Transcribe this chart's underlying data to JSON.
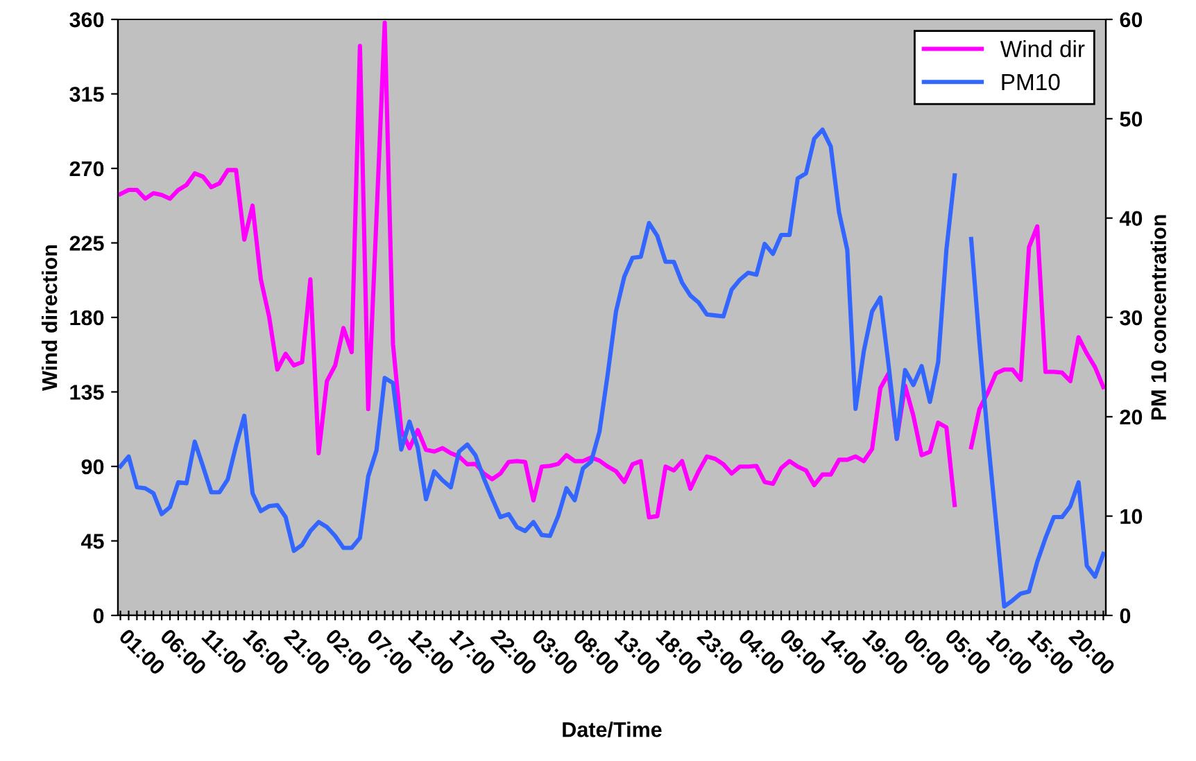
{
  "chart_data": {
    "type": "line",
    "xlabel": "Date/Time",
    "ylabel": "Wind direction",
    "y2label": "PM 10 concentration",
    "categories": [
      null,
      "01:00",
      null,
      null,
      null,
      null,
      "06:00",
      null,
      null,
      null,
      null,
      "11:00",
      null,
      null,
      null,
      null,
      "16:00",
      null,
      null,
      null,
      null,
      "21:00",
      null,
      null,
      null,
      null,
      "02:00",
      null,
      null,
      null,
      null,
      "07:00",
      null,
      null,
      null,
      null,
      "12:00",
      null,
      null,
      null,
      null,
      "17:00",
      null,
      null,
      null,
      null,
      "22:00",
      null,
      null,
      null,
      null,
      "03:00",
      null,
      null,
      null,
      null,
      "08:00",
      null,
      null,
      null,
      null,
      "13:00",
      null,
      null,
      null,
      null,
      "18:00",
      null,
      null,
      null,
      null,
      "23:00",
      null,
      null,
      null,
      null,
      "04:00",
      null,
      null,
      null,
      null,
      "09:00",
      null,
      null,
      null,
      null,
      "14:00",
      null,
      null,
      null,
      null,
      "19:00",
      null,
      null,
      null,
      null,
      "00:00",
      null,
      null,
      null,
      null,
      "05:00",
      null,
      null,
      null,
      null,
      "10:00",
      null,
      null,
      null,
      null,
      "15:00",
      null,
      null,
      null,
      null,
      "20:00",
      null,
      null,
      null
    ],
    "series": [
      {
        "name": "Wind dir",
        "color": "#ff00ff",
        "values": [
          254.5,
          257,
          257,
          251.7,
          255,
          254,
          251.7,
          257,
          260,
          267,
          265,
          258.7,
          261,
          269,
          269,
          227,
          247.5,
          203,
          180.6,
          148.5,
          158,
          151,
          153,
          203,
          98,
          141.5,
          151,
          173.6,
          159,
          344,
          124.7,
          240,
          358,
          164,
          112,
          101,
          112,
          100,
          99,
          101,
          98,
          96,
          91.3,
          91.5,
          85.7,
          82.3,
          85.7,
          92.7,
          93.2,
          92.7,
          69.5,
          89.9,
          90.3,
          91.5,
          96.8,
          93.2,
          93.2,
          95.4,
          93.5,
          89.9,
          87.1,
          80.6,
          91.3,
          93.2,
          59.2,
          60,
          89.9,
          87.6,
          93.2,
          76.5,
          87.1,
          96,
          94.6,
          91.3,
          85.7,
          89.9,
          89.9,
          90.3,
          80.6,
          79.5,
          89,
          93.2,
          89.9,
          87.6,
          78.7,
          85.1,
          85.1,
          94,
          94,
          96,
          93.2,
          100.5,
          137.3,
          146.2,
          106.6,
          138.7,
          120.6,
          96.8,
          98.8,
          116.4,
          113.6,
          66.7,
          null,
          101.6,
          124.7,
          134.5,
          146.2,
          148.5,
          148.5,
          142.3,
          222.4,
          235,
          147.1,
          147.1,
          146.7,
          141.5,
          168,
          158.2,
          149.9,
          137.9
        ]
      },
      {
        "name": "PM10",
        "color": "#3366ff",
        "axis": "y2",
        "values": [
          15,
          16,
          12.9,
          12.8,
          12.3,
          10.2,
          10.9,
          13.4,
          13.3,
          17.5,
          15,
          12.4,
          12.4,
          13.7,
          17.1,
          20.1,
          12.3,
          10.5,
          11,
          11.1,
          9.9,
          6.5,
          7.1,
          8.5,
          9.4,
          8.9,
          8,
          6.8,
          6.8,
          7.8,
          14,
          16.6,
          23.9,
          23.4,
          16.7,
          19.5,
          16.9,
          11.7,
          14.5,
          13.6,
          12.9,
          16.5,
          17.2,
          16.1,
          13.8,
          11.8,
          9.9,
          10.2,
          8.9,
          8.5,
          9.4,
          8.1,
          8,
          10,
          12.8,
          11.6,
          14.8,
          15.5,
          18.5,
          24.3,
          30.6,
          34.1,
          36,
          36.1,
          39.5,
          38.2,
          35.6,
          35.6,
          33.5,
          32.2,
          31.5,
          30.3,
          30.2,
          30.1,
          32.8,
          33.8,
          34.5,
          34.3,
          37.4,
          36.4,
          38.3,
          38.3,
          44,
          44.5,
          48,
          48.9,
          47.2,
          40.6,
          36.8,
          20.8,
          26.6,
          30.6,
          32,
          25.2,
          17.8,
          24.7,
          23.2,
          25.1,
          21.5,
          25.5,
          36.8,
          44.3,
          null,
          37.9,
          27.5,
          18,
          9.5,
          0.9,
          1.5,
          2.2,
          2.4,
          5.4,
          7.8,
          9.9,
          9.9,
          11,
          13.4,
          5,
          3.9,
          6.2
        ]
      }
    ],
    "ylim": [
      0,
      360
    ],
    "yticks": [
      0,
      45,
      90,
      135,
      180,
      225,
      270,
      315,
      360
    ],
    "y2lim": [
      0,
      60
    ],
    "y2ticks": [
      0,
      10,
      20,
      30,
      40,
      50,
      60
    ],
    "grid": false,
    "legend": "top right",
    "marker": "none",
    "line_style": "solid"
  }
}
